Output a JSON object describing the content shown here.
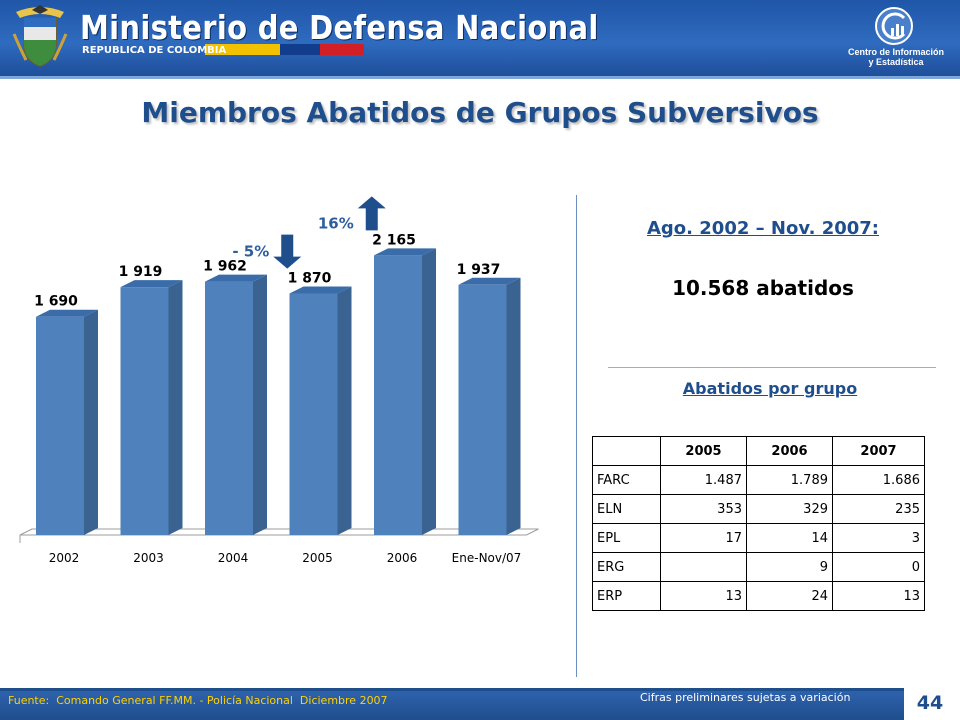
{
  "header": {
    "ministry_title": "Ministerio de Defensa Nacional",
    "republic": "REPUBLICA DE COLOMBIA",
    "center_line1": "Centro de Información",
    "center_line2": "y Estadística"
  },
  "title": "Miembros Abatidos de Grupos Subversivos",
  "colors": {
    "brand_blue": "#1f4e8c",
    "bar_front": "#4f81bd",
    "bar_side": "#3a6391",
    "bar_top": "#3a6ca9",
    "footer_source": "#ffd200"
  },
  "chart_data": {
    "type": "bar",
    "categories": [
      "2002",
      "2003",
      "2004",
      "2005",
      "2006",
      "Ene-Nov/07"
    ],
    "values": [
      1690,
      1919,
      1962,
      1870,
      2165,
      1937
    ],
    "value_labels": [
      "1 690",
      "1 919",
      "1 962",
      "1 870",
      "2 165",
      "1 937"
    ],
    "ylim": [
      0,
      2400
    ],
    "grid": false,
    "annotations": [
      {
        "text": "- 5%",
        "direction": "down",
        "between": [
          "2004",
          "2005"
        ]
      },
      {
        "text": "16%",
        "direction": "up",
        "between": [
          "2005",
          "2006"
        ]
      }
    ]
  },
  "summary": {
    "period": "Ago. 2002 – Nov. 2007:",
    "total": "10.568 abatidos",
    "group_heading": "Abatidos por grupo"
  },
  "group_table": {
    "columns": [
      "",
      "2005",
      "2006",
      "2007"
    ],
    "rows": [
      [
        "FARC",
        "1.487",
        "1.789",
        "1.686"
      ],
      [
        "ELN",
        "353",
        "329",
        "235"
      ],
      [
        "EPL",
        "17",
        "14",
        "3"
      ],
      [
        "ERG",
        "",
        "9",
        "0"
      ],
      [
        "ERP",
        "13",
        "24",
        "13"
      ]
    ]
  },
  "footer": {
    "source": "Fuente:  Comando General FF.MM. - Policía Nacional  Diciembre 2007",
    "note": "Cifras preliminares sujetas a variación",
    "page": "44"
  }
}
